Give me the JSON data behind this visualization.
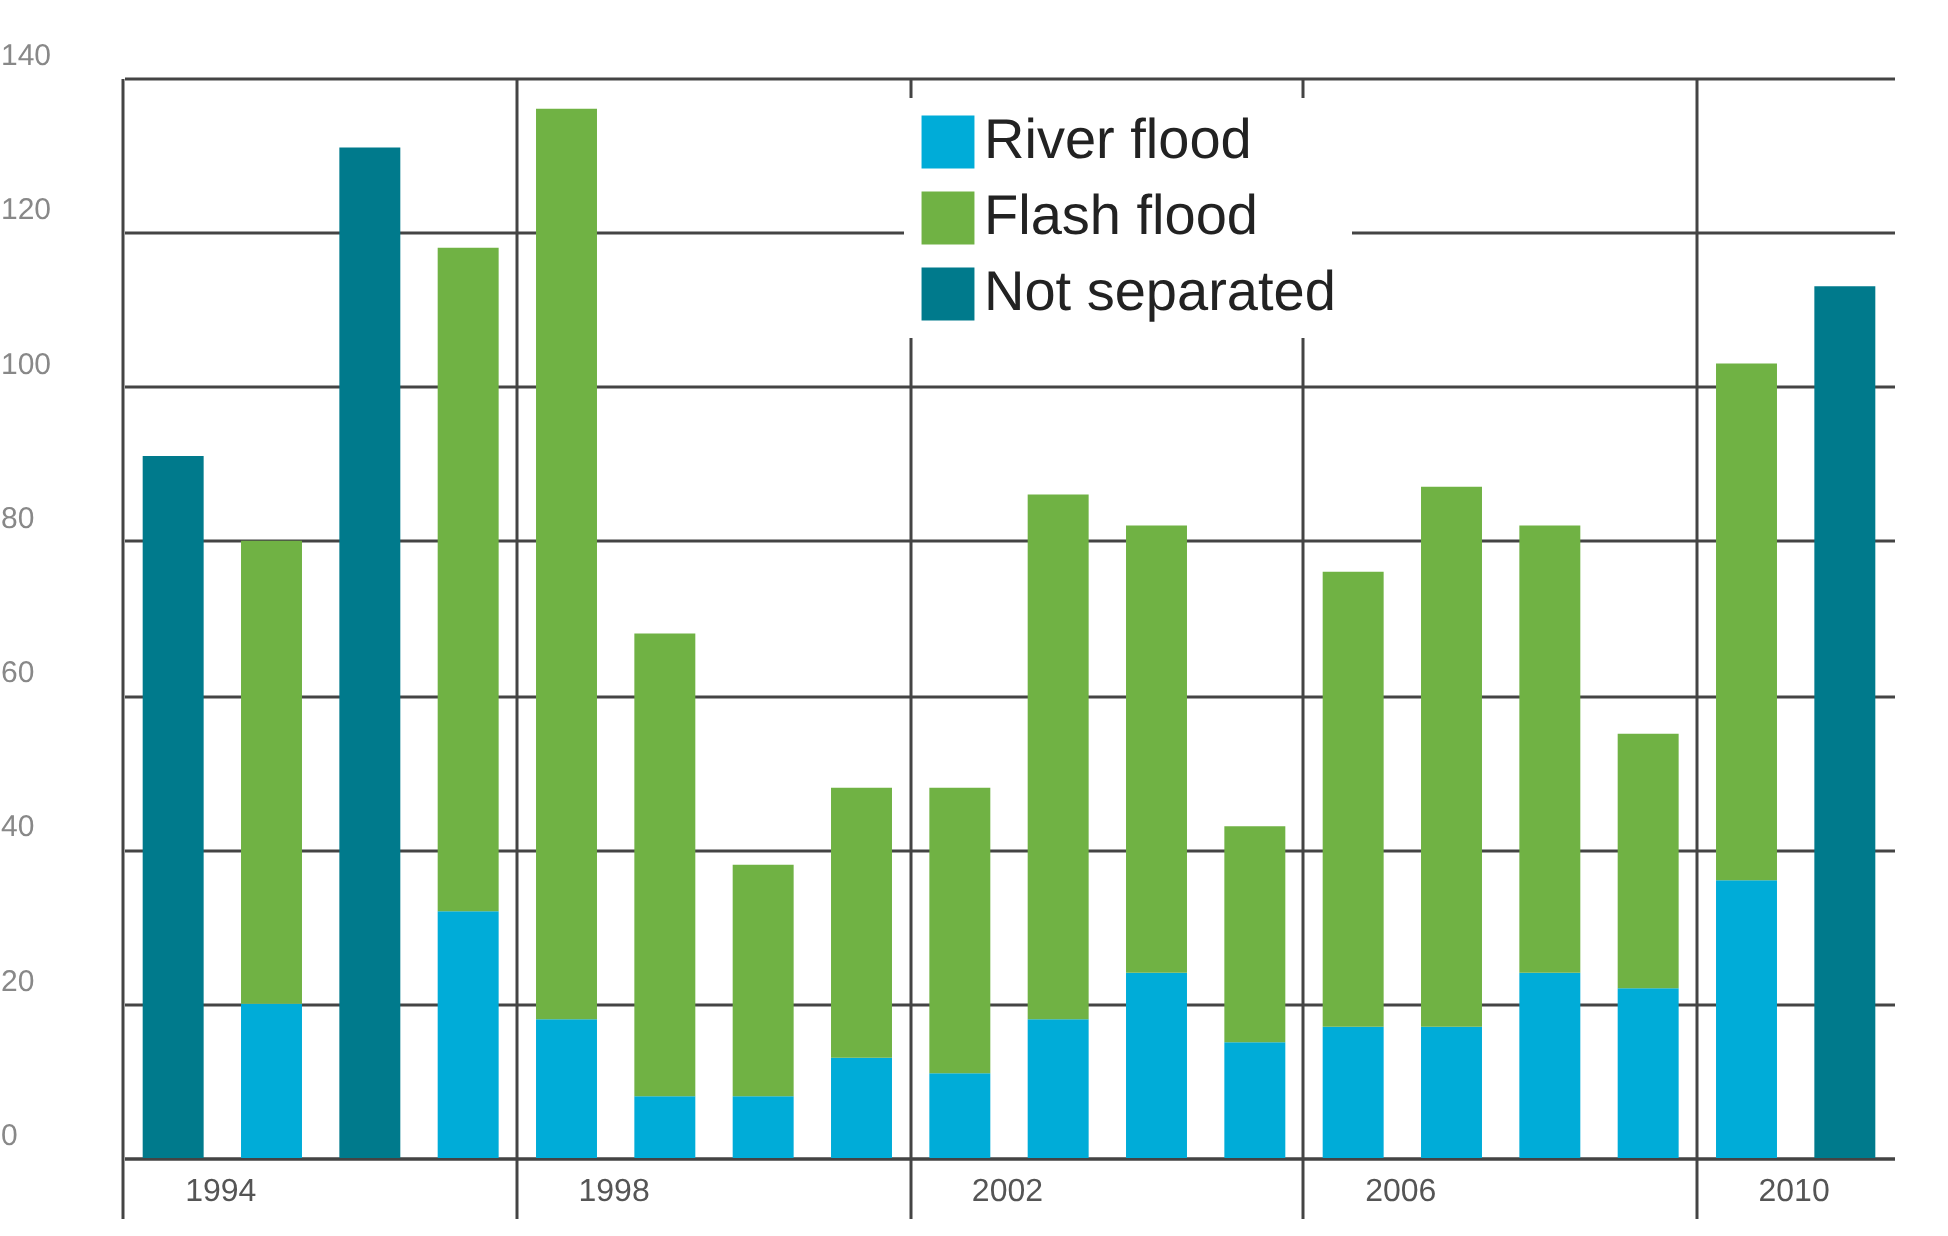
{
  "chart_data": {
    "type": "bar",
    "stacked": true,
    "categories": [
      "1994",
      null,
      null,
      null,
      "1998",
      null,
      null,
      null,
      "2002",
      null,
      null,
      null,
      "2006",
      null,
      null,
      null,
      "2010",
      null
    ],
    "series": [
      {
        "name": "River flood",
        "color": "#00acd8",
        "values": [
          null,
          20,
          null,
          32,
          18,
          8,
          8,
          13,
          11,
          18,
          24,
          15,
          17,
          17,
          24,
          22,
          36,
          null
        ]
      },
      {
        "name": "Flash flood",
        "color": "#70b244",
        "values": [
          null,
          60,
          null,
          86,
          118,
          60,
          30,
          35,
          37,
          68,
          58,
          28,
          59,
          70,
          58,
          33,
          67,
          null
        ]
      },
      {
        "name": "Not separated",
        "color": "#007a8c",
        "values": [
          91,
          null,
          131,
          null,
          null,
          null,
          null,
          null,
          null,
          null,
          null,
          null,
          null,
          null,
          null,
          null,
          null,
          113
        ]
      }
    ],
    "ylim": [
      0,
      140
    ],
    "yticks": [
      0,
      20,
      40,
      60,
      80,
      100,
      120,
      140
    ],
    "grid": true,
    "legend": "top"
  }
}
